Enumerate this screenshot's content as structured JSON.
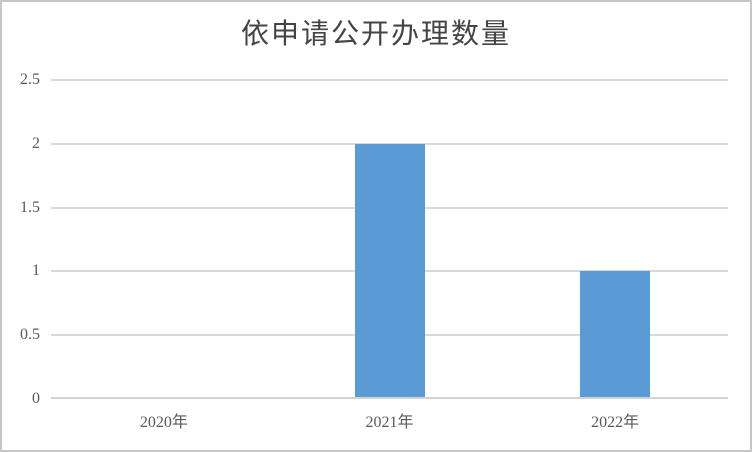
{
  "colors": {
    "bar": "#5B9BD5",
    "gridline": "#D9D9D9",
    "axis_line": "#D2D2D2",
    "tick_label": "#595959",
    "title": "#444444",
    "frame_border": "#C6C6C6",
    "background": "#FFFFFF"
  },
  "chart_data": {
    "type": "bar",
    "title": "依申请公开办理数量",
    "categories": [
      "2020年",
      "2021年",
      "2022年"
    ],
    "values": [
      0,
      2,
      1
    ],
    "xlabel": "",
    "ylabel": "",
    "ylim": [
      0,
      2.5
    ],
    "ytick_interval": 0.5,
    "ytick_labels": [
      "0",
      "0.5",
      "1",
      "1.5",
      "2",
      "2.5"
    ],
    "grid": true,
    "legend": false,
    "bar_color": "#5B9BD5",
    "series": [
      {
        "name": "依申请公开办理数量",
        "values": [
          0,
          2,
          1
        ]
      }
    ]
  }
}
